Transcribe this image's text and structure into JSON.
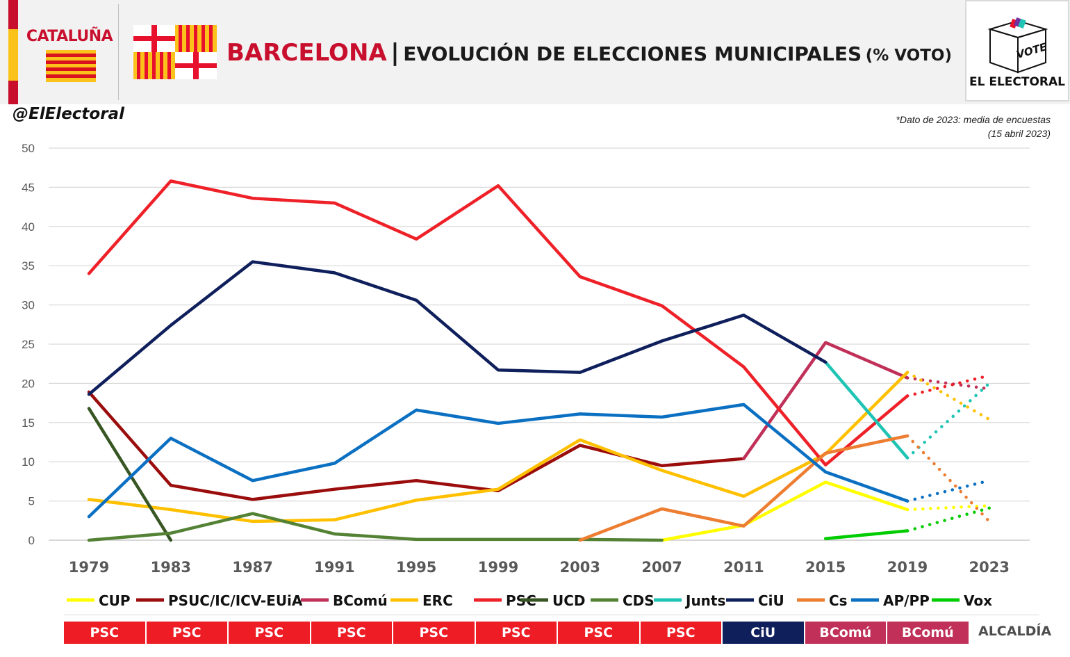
{
  "header": {
    "region_label": "CATALUÑA",
    "title_city": "BARCELONA",
    "title_separator": "|",
    "title_main": "EVOLUCIÓN DE ELECCIONES MUNICIPALES",
    "title_sub": "(% VOTO)",
    "logo_ballot_text": "VOTE",
    "logo_name": "EL ELECTORAL"
  },
  "handle": "@ElElectoral",
  "note_line1": "*Dato de 2023: media de encuestas",
  "note_line2": "(15 abril 2023)",
  "colors": {
    "brand_red": "#c8102e",
    "flag_yellow": "#fcc21c",
    "flag_red": "#d9121f"
  },
  "chart_data": {
    "type": "line",
    "x": [
      1979,
      1983,
      1987,
      1991,
      1995,
      1999,
      2003,
      2007,
      2011,
      2015,
      2019,
      2023
    ],
    "ylim": [
      0,
      50
    ],
    "yticks": [
      0,
      5,
      10,
      15,
      20,
      25,
      30,
      35,
      40,
      45,
      50
    ],
    "grid": true,
    "legend_position": "bottom",
    "projection_note": "2023 values shown dotted (poll average)",
    "series": [
      {
        "name": "CUP",
        "color": "#ffff00",
        "values": [
          null,
          null,
          null,
          null,
          null,
          null,
          null,
          0,
          1.9,
          7.4,
          3.9,
          4.4
        ]
      },
      {
        "name": "PSUC/IC/ICV-EUiA",
        "color": "#9b0d0d",
        "values": [
          18.9,
          7.0,
          5.2,
          6.5,
          7.6,
          6.3,
          12.1,
          9.5,
          10.4,
          null,
          null,
          null
        ]
      },
      {
        "name": "BComú",
        "color": "#c03058",
        "values": [
          null,
          null,
          null,
          null,
          null,
          null,
          null,
          null,
          10.4,
          25.2,
          20.7,
          19.3
        ]
      },
      {
        "name": "ERC",
        "color": "#ffc000",
        "values": [
          5.2,
          3.9,
          2.4,
          2.6,
          5.1,
          6.5,
          12.8,
          8.9,
          5.6,
          11.0,
          21.4,
          15.4
        ]
      },
      {
        "name": "PSC",
        "color": "#ee2028",
        "values": [
          34.0,
          45.8,
          43.6,
          43.0,
          38.4,
          45.2,
          33.6,
          29.9,
          22.1,
          9.6,
          18.4,
          21.0
        ]
      },
      {
        "name": "UCD",
        "color": "#375623",
        "values": [
          16.8,
          0,
          null,
          null,
          null,
          null,
          null,
          null,
          null,
          null,
          null,
          null
        ]
      },
      {
        "name": "CDS",
        "color": "#548235",
        "values": [
          0,
          0.9,
          3.4,
          0.8,
          0.1,
          0.1,
          0.1,
          0,
          null,
          null,
          null,
          null
        ]
      },
      {
        "name": "Junts",
        "color": "#1fc4b4",
        "values": [
          null,
          null,
          null,
          null,
          null,
          null,
          null,
          null,
          null,
          22.7,
          10.5,
          20.0
        ]
      },
      {
        "name": "CiU",
        "color": "#0e1f5c",
        "values": [
          18.6,
          27.4,
          35.5,
          34.1,
          30.6,
          21.7,
          21.4,
          25.4,
          28.7,
          22.7,
          null,
          null
        ]
      },
      {
        "name": "Cs",
        "color": "#ed7d31",
        "values": [
          null,
          null,
          null,
          null,
          null,
          null,
          0,
          4.0,
          1.8,
          11.1,
          13.3,
          2.4
        ]
      },
      {
        "name": "AP/PP",
        "color": "#0b70c2",
        "values": [
          3.0,
          13.0,
          7.6,
          9.8,
          16.6,
          14.9,
          16.1,
          15.7,
          17.3,
          8.7,
          5.0,
          7.6
        ]
      },
      {
        "name": "Vox",
        "color": "#00cc00",
        "values": [
          null,
          null,
          null,
          null,
          null,
          null,
          null,
          null,
          null,
          0.2,
          1.2,
          4.1
        ]
      }
    ]
  },
  "mayors": {
    "cells": [
      {
        "label": "PSC",
        "color": "#ee1c25"
      },
      {
        "label": "PSC",
        "color": "#ee1c25"
      },
      {
        "label": "PSC",
        "color": "#ee1c25"
      },
      {
        "label": "PSC",
        "color": "#ee1c25"
      },
      {
        "label": "PSC",
        "color": "#ee1c25"
      },
      {
        "label": "PSC",
        "color": "#ee1c25"
      },
      {
        "label": "PSC",
        "color": "#ee1c25"
      },
      {
        "label": "PSC",
        "color": "#ee1c25"
      },
      {
        "label": "CiU",
        "color": "#0e1f5c"
      },
      {
        "label": "BComú",
        "color": "#c03058"
      },
      {
        "label": "BComú",
        "color": "#c03058"
      }
    ],
    "label": "ALCALDÍA"
  }
}
